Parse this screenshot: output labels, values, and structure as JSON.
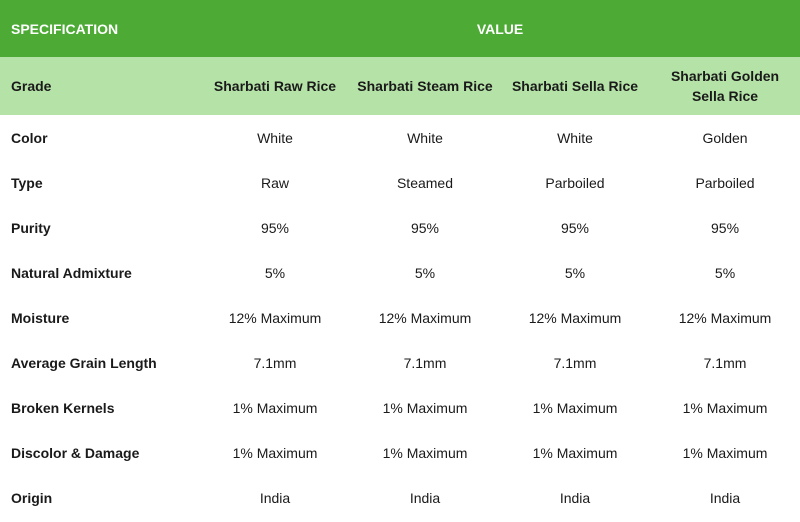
{
  "table": {
    "header": {
      "spec": "SPECIFICATION",
      "value": "VALUE"
    },
    "grade": {
      "label": "Grade",
      "values": [
        "Sharbati Raw Rice",
        "Sharbati Steam Rice",
        "Sharbati Sella Rice",
        "Sharbati Golden Sella Rice"
      ]
    },
    "rows": [
      {
        "label": "Color",
        "values": [
          "White",
          "White",
          "White",
          "Golden"
        ]
      },
      {
        "label": "Type",
        "values": [
          "Raw",
          "Steamed",
          "Parboiled",
          "Parboiled"
        ]
      },
      {
        "label": "Purity",
        "values": [
          "95%",
          "95%",
          "95%",
          "95%"
        ]
      },
      {
        "label": "Natural Admixture",
        "values": [
          "5%",
          "5%",
          "5%",
          "5%"
        ]
      },
      {
        "label": "Moisture",
        "values": [
          "12% Maximum",
          "12% Maximum",
          "12% Maximum",
          "12% Maximum"
        ]
      },
      {
        "label": "Average Grain Length",
        "values": [
          "7.1mm",
          "7.1mm",
          "7.1mm",
          "7.1mm"
        ]
      },
      {
        "label": "Broken Kernels",
        "values": [
          "1% Maximum",
          "1% Maximum",
          "1% Maximum",
          "1% Maximum"
        ]
      },
      {
        "label": "Discolor & Damage",
        "values": [
          "1% Maximum",
          "1% Maximum",
          "1% Maximum",
          "1% Maximum"
        ]
      },
      {
        "label": "Origin",
        "values": [
          "India",
          "India",
          "India",
          "India"
        ]
      }
    ]
  },
  "colors": {
    "header_bg": "#4caa35",
    "grade_bg": "#b5e3a7",
    "text": "#1a1a1a"
  }
}
